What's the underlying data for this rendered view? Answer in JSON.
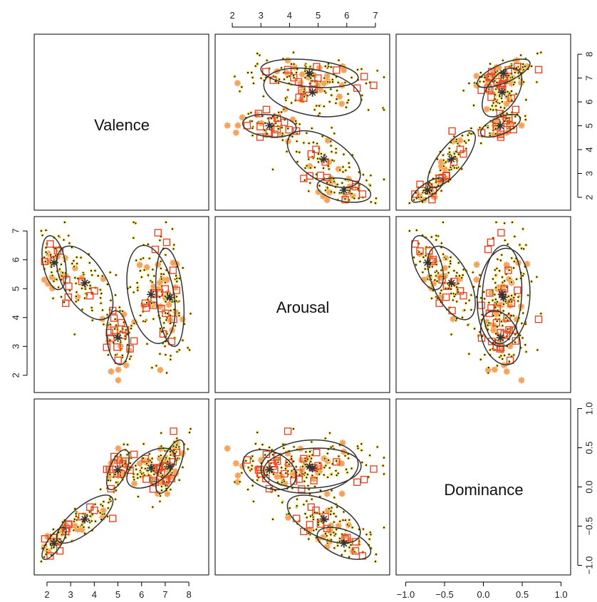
{
  "chart_data": {
    "type": "scatter",
    "variables": [
      "Valence",
      "Arousal",
      "Dominance"
    ],
    "diagonal_labels": [
      "Valence",
      "Arousal",
      "Dominance"
    ],
    "axis_ticks": {
      "Valence": [
        "2",
        "3",
        "4",
        "5",
        "6",
        "7",
        "8"
      ],
      "Arousal": [
        "2",
        "3",
        "4",
        "5",
        "6",
        "7"
      ],
      "Dominance": [
        "−1.0",
        "−0.5",
        "0.0",
        "0.5",
        "1.0"
      ]
    },
    "axis_tick_values": {
      "Valence": [
        2,
        3,
        4,
        5,
        6,
        7,
        8
      ],
      "Arousal": [
        2,
        3,
        4,
        5,
        6,
        7
      ],
      "Dominance": [
        -1.0,
        -0.5,
        0.0,
        0.5,
        1.0
      ]
    },
    "ranges": {
      "Valence": [
        1.7,
        8.6
      ],
      "Arousal": [
        1.6,
        7.3
      ],
      "Dominance": [
        -1.05,
        1.05
      ]
    },
    "colors": {
      "dots": "#111111",
      "dot_halo": "#f7df6a",
      "stars": "#f5a25a",
      "squares": "#e8472a",
      "ellipse": "#333333",
      "center": "#333333"
    },
    "clusters": [
      {
        "center": {
          "Valence": 2.3,
          "Arousal": 5.9,
          "Dominance": -0.72
        },
        "sd": {
          "Valence": 0.3,
          "Arousal": 0.55,
          "Dominance": 0.12
        },
        "corr": {
          "VA": -0.35,
          "VD": 0.75,
          "AD": -0.5
        }
      },
      {
        "center": {
          "Valence": 3.6,
          "Arousal": 5.2,
          "Dominance": -0.41
        },
        "sd": {
          "Valence": 0.7,
          "Arousal": 0.75,
          "Dominance": 0.18
        },
        "corr": {
          "VA": -0.55,
          "VD": 0.75,
          "AD": -0.55
        }
      },
      {
        "center": {
          "Valence": 5.0,
          "Arousal": 3.3,
          "Dominance": 0.22
        },
        "sd": {
          "Valence": 0.28,
          "Arousal": 0.55,
          "Dominance": 0.15
        },
        "corr": {
          "VA": -0.2,
          "VD": 0.6,
          "AD": -0.3
        }
      },
      {
        "center": {
          "Valence": 6.4,
          "Arousal": 4.8,
          "Dominance": 0.24
        },
        "sd": {
          "Valence": 0.6,
          "Arousal": 1.0,
          "Dominance": 0.15
        },
        "corr": {
          "VA": -0.3,
          "VD": 0.5,
          "AD": 0.1
        }
      },
      {
        "center": {
          "Valence": 7.2,
          "Arousal": 4.7,
          "Dominance": 0.26
        },
        "sd": {
          "Valence": 0.35,
          "Arousal": 1.0,
          "Dominance": 0.2
        },
        "corr": {
          "VA": -0.3,
          "VD": 0.7,
          "AD": 0.1
        }
      }
    ],
    "points": {
      "per_cluster_dots": [
        38,
        72,
        40,
        78,
        55
      ],
      "per_cluster_stars": [
        6,
        10,
        9,
        11,
        12
      ],
      "per_cluster_squares": [
        7,
        6,
        12,
        8,
        9
      ]
    }
  }
}
